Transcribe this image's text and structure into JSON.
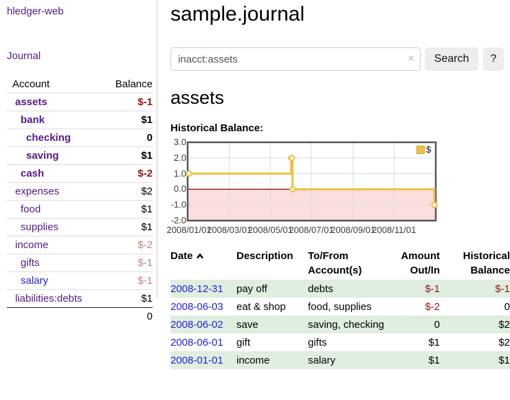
{
  "app": {
    "title": "hledger-web"
  },
  "sidebar": {
    "journal_link": "Journal",
    "accounts": {
      "header_account": "Account",
      "header_balance": "Balance",
      "rows": [
        {
          "name": "assets",
          "depth": 0,
          "bold": true,
          "balance": "$-1",
          "balance_class": "neg"
        },
        {
          "name": "bank",
          "depth": 1,
          "bold": true,
          "balance": "$1",
          "balance_class": ""
        },
        {
          "name": "checking",
          "depth": 2,
          "bold": true,
          "balance": "0",
          "balance_class": ""
        },
        {
          "name": "saving",
          "depth": 2,
          "bold": true,
          "balance": "$1",
          "balance_class": ""
        },
        {
          "name": "cash",
          "depth": 1,
          "bold": true,
          "balance": "$-2",
          "balance_class": "neg"
        },
        {
          "name": "expenses",
          "depth": 0,
          "bold": false,
          "balance": "$2",
          "balance_class": ""
        },
        {
          "name": "food",
          "depth": 1,
          "bold": false,
          "balance": "$1",
          "balance_class": ""
        },
        {
          "name": "supplies",
          "depth": 1,
          "bold": false,
          "balance": "$1",
          "balance_class": ""
        },
        {
          "name": "income",
          "depth": 0,
          "bold": false,
          "balance": "$-2",
          "balance_class": "neg-muted"
        },
        {
          "name": "gifts",
          "depth": 1,
          "bold": false,
          "balance": "$-1",
          "balance_class": "neg-muted"
        },
        {
          "name": "salary",
          "depth": 1,
          "bold": false,
          "balance": "$-1",
          "balance_class": "neg-muted",
          "link_blue": true
        },
        {
          "name": "liabilities:debts",
          "depth": 0,
          "bold": false,
          "balance": "$1",
          "balance_class": ""
        }
      ],
      "total": "0"
    }
  },
  "main": {
    "title": "sample.journal",
    "search": {
      "value": "inacct:assets",
      "clear_icon": "×",
      "search_button": "Search",
      "help_button": "?"
    },
    "account_heading": "assets",
    "chart_label": "Historical Balance:"
  },
  "chart_data": {
    "type": "line",
    "title": "Historical Balance",
    "legend": {
      "label": "$",
      "position": "top-right"
    },
    "series": [
      {
        "name": "$",
        "color": "#EDC240",
        "steps": true,
        "points": [
          [
            "2008-01-01",
            1
          ],
          [
            "2008-06-01",
            2
          ],
          [
            "2008-06-02",
            2
          ],
          [
            "2008-06-03",
            0
          ],
          [
            "2008-12-31",
            -1
          ]
        ]
      }
    ],
    "xlim": [
      "2008-01-01",
      "2008-12-31"
    ],
    "ylim": [
      -2,
      3
    ],
    "yticks": [
      "3.0",
      "2.0",
      "1.0",
      "0.0",
      "-1.0",
      "-2.0"
    ],
    "xticks": [
      "2008/01/01",
      "2008/03/01",
      "2008/05/01",
      "2008/07/01",
      "2008/09/01",
      "2008/11/01"
    ],
    "grid": true,
    "negative_region_color": "#FBDEDE",
    "zero_line_color": "#8B0000",
    "border_color": "#555555",
    "gridline_color": "#DCDCDC"
  },
  "register": {
    "headers": {
      "date": "Date",
      "description": "Description",
      "accounts_line1": "To/From",
      "accounts_line2": "Account(s)",
      "amount_line1": "Amount",
      "amount_line2": "Out/In",
      "balance_line1": "Historical",
      "balance_line2": "Balance"
    },
    "sort": {
      "column": "date",
      "direction": "ascending"
    },
    "rows": [
      {
        "date": "2008-12-31",
        "description": "pay off",
        "accounts": "debts",
        "amount": "$-1",
        "amount_class": "neg",
        "balance": "$-1",
        "balance_class": "neg"
      },
      {
        "date": "2008-06-03",
        "description": "eat & shop",
        "accounts": "food, supplies",
        "amount": "$-2",
        "amount_class": "neg",
        "balance": "0",
        "balance_class": ""
      },
      {
        "date": "2008-06-02",
        "description": "save",
        "accounts": "saving, checking",
        "amount": "0",
        "amount_class": "",
        "balance": "$2",
        "balance_class": ""
      },
      {
        "date": "2008-06-01",
        "description": "gift",
        "accounts": "gifts",
        "amount": "$1",
        "amount_class": "",
        "balance": "$2",
        "balance_class": ""
      },
      {
        "date": "2008-01-01",
        "description": "income",
        "accounts": "salary",
        "amount": "$1",
        "amount_class": "",
        "balance": "$1",
        "balance_class": ""
      }
    ]
  }
}
